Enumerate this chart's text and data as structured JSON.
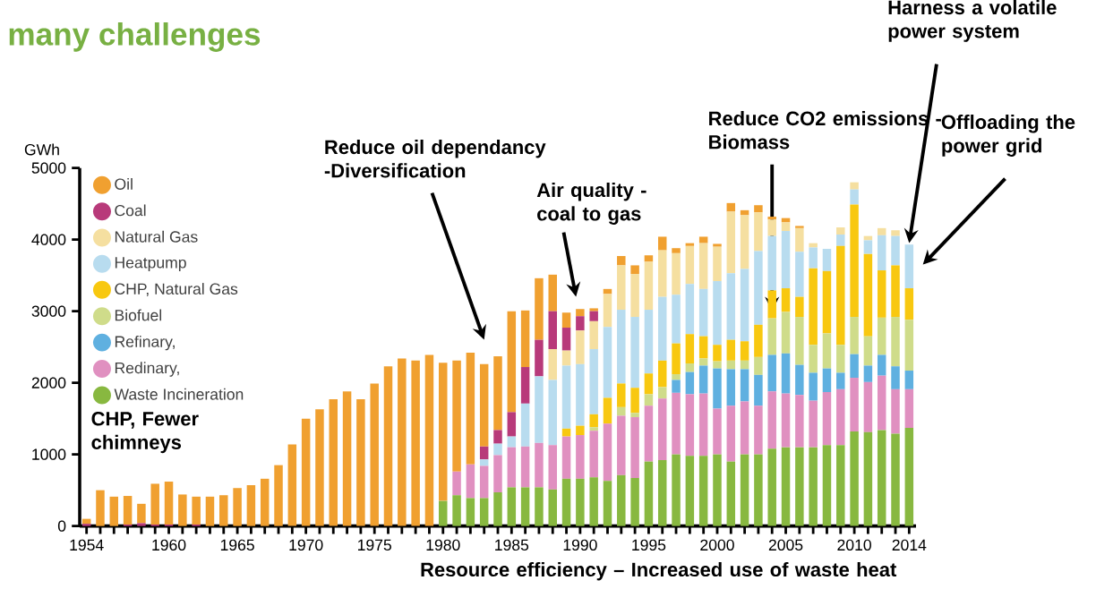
{
  "chart_data": {
    "type": "bar",
    "stacked": true,
    "title": "many challenges",
    "ylabel": "GWh",
    "legend": "top left",
    "x": [
      1954,
      1955,
      1956,
      1957,
      1958,
      1959,
      1960,
      1961,
      1962,
      1963,
      1964,
      1965,
      1966,
      1967,
      1968,
      1969,
      1970,
      1971,
      1972,
      1973,
      1974,
      1975,
      1976,
      1977,
      1978,
      1979,
      1980,
      1981,
      1982,
      1983,
      1984,
      1985,
      1986,
      1987,
      1988,
      1989,
      1990,
      1991,
      1992,
      1993,
      1994,
      1995,
      1996,
      1997,
      1998,
      1999,
      2000,
      2001,
      2002,
      2003,
      2004,
      2005,
      2006,
      2007,
      2008,
      2009,
      2010,
      2011,
      2012,
      2013,
      2014
    ],
    "xlim": [
      1953.5,
      2014.5
    ],
    "xticks": [
      1954,
      {
        "value": 1955,
        "label": null
      },
      {
        "value": 1956,
        "label": null
      },
      {
        "value": 1957,
        "label": null
      },
      {
        "value": 1958,
        "label": null
      },
      {
        "value": 1959,
        "label": null
      },
      1960,
      {
        "value": 1961,
        "label": null
      },
      {
        "value": 1962,
        "label": null
      },
      {
        "value": 1963,
        "label": null
      },
      {
        "value": 1964,
        "label": null
      },
      1965,
      {
        "value": 1966,
        "label": null
      },
      {
        "value": 1967,
        "label": null
      },
      {
        "value": 1968,
        "label": null
      },
      {
        "value": 1969,
        "label": null
      },
      1970,
      {
        "value": 1971,
        "label": null
      },
      {
        "value": 1972,
        "label": null
      },
      {
        "value": 1973,
        "label": null
      },
      {
        "value": 1974,
        "label": null
      },
      1975,
      {
        "value": 1976,
        "label": null
      },
      {
        "value": 1977,
        "label": null
      },
      {
        "value": 1978,
        "label": null
      },
      {
        "value": 1979,
        "label": null
      },
      1980,
      {
        "value": 1981,
        "label": null
      },
      {
        "value": 1982,
        "label": null
      },
      {
        "value": 1983,
        "label": null
      },
      {
        "value": 1984,
        "label": null
      },
      1985,
      {
        "value": 1986,
        "label": null
      },
      {
        "value": 1987,
        "label": null
      },
      {
        "value": 1988,
        "label": null
      },
      {
        "value": 1989,
        "label": null
      },
      1990,
      {
        "value": 1991,
        "label": null
      },
      {
        "value": 1992,
        "label": null
      },
      {
        "value": 1993,
        "label": null
      },
      {
        "value": 1994,
        "label": null
      },
      1995,
      {
        "value": 1996,
        "label": null
      },
      {
        "value": 1997,
        "label": null
      },
      {
        "value": 1998,
        "label": null
      },
      {
        "value": 1999,
        "label": null
      },
      2000,
      {
        "value": 2001,
        "label": null
      },
      {
        "value": 2002,
        "label": null
      },
      {
        "value": 2003,
        "label": null
      },
      {
        "value": 2004,
        "label": null
      },
      2005,
      {
        "value": 2006,
        "label": null
      },
      {
        "value": 2007,
        "label": null
      },
      {
        "value": 2008,
        "label": null
      },
      {
        "value": 2009,
        "label": null
      },
      2010,
      {
        "value": 2011,
        "label": null
      },
      {
        "value": 2012,
        "label": null
      },
      {
        "value": 2013,
        "label": null
      },
      2014
    ],
    "ylim": [
      0,
      5000
    ],
    "yticks": [
      0,
      1000,
      2000,
      3000,
      4000,
      5000
    ],
    "series": [
      {
        "name": "Waste Incineration",
        "color": "#88b840",
        "values": [
          0,
          0,
          0,
          0,
          0,
          0,
          0,
          0,
          0,
          0,
          0,
          0,
          0,
          0,
          0,
          0,
          0,
          0,
          0,
          0,
          0,
          0,
          0,
          0,
          0,
          0,
          350,
          430,
          390,
          390,
          470,
          540,
          540,
          540,
          510,
          660,
          660,
          680,
          630,
          710,
          670,
          900,
          920,
          1000,
          980,
          980,
          1000,
          900,
          1000,
          1000,
          1080,
          1100,
          1100,
          1100,
          1130,
          1130,
          1320,
          1310,
          1340,
          1290,
          1370
        ]
      },
      {
        "name": "Redinary,",
        "color": "#e090c0",
        "values": [
          0,
          0,
          0,
          0,
          0,
          0,
          0,
          0,
          0,
          0,
          0,
          0,
          0,
          0,
          0,
          0,
          0,
          0,
          0,
          0,
          0,
          0,
          0,
          0,
          0,
          0,
          0,
          330,
          470,
          450,
          520,
          560,
          570,
          620,
          620,
          590,
          610,
          650,
          800,
          830,
          850,
          780,
          860,
          860,
          860,
          870,
          640,
          780,
          740,
          680,
          800,
          750,
          730,
          650,
          740,
          780,
          750,
          700,
          760,
          620,
          540
        ]
      },
      {
        "name": "Refinary,",
        "color": "#5fb0e0",
        "values": [
          0,
          0,
          0,
          0,
          0,
          0,
          0,
          0,
          0,
          0,
          0,
          0,
          0,
          0,
          0,
          0,
          0,
          0,
          0,
          0,
          0,
          0,
          0,
          0,
          0,
          0,
          0,
          0,
          0,
          0,
          0,
          0,
          0,
          0,
          0,
          0,
          0,
          0,
          0,
          0,
          0,
          0,
          0,
          180,
          310,
          390,
          560,
          510,
          450,
          430,
          510,
          560,
          420,
          390,
          330,
          230,
          330,
          230,
          290,
          320,
          260
        ]
      },
      {
        "name": "Biofuel",
        "color": "#cfdc8a",
        "values": [
          0,
          0,
          0,
          0,
          0,
          0,
          0,
          0,
          0,
          0,
          0,
          0,
          0,
          0,
          0,
          0,
          0,
          0,
          0,
          0,
          0,
          0,
          0,
          0,
          0,
          0,
          0,
          0,
          0,
          0,
          0,
          0,
          0,
          0,
          0,
          0,
          0,
          50,
          0,
          120,
          60,
          160,
          160,
          80,
          120,
          100,
          100,
          120,
          120,
          250,
          510,
          580,
          670,
          390,
          490,
          390,
          520,
          410,
          520,
          690,
          710
        ]
      },
      {
        "name": "CHP, Natural Gas",
        "color": "#f8c810",
        "values": [
          0,
          0,
          0,
          0,
          0,
          0,
          0,
          0,
          0,
          0,
          0,
          0,
          0,
          0,
          0,
          0,
          0,
          0,
          0,
          0,
          0,
          0,
          0,
          0,
          0,
          0,
          0,
          0,
          0,
          0,
          0,
          0,
          0,
          0,
          0,
          110,
          130,
          180,
          360,
          330,
          350,
          290,
          370,
          430,
          410,
          310,
          230,
          290,
          270,
          450,
          390,
          330,
          280,
          1070,
          870,
          1380,
          1570,
          1150,
          660,
          720,
          440
        ]
      },
      {
        "name": "Heatpump",
        "color": "#b8dcef",
        "values": [
          0,
          0,
          0,
          0,
          0,
          0,
          0,
          0,
          0,
          0,
          0,
          0,
          0,
          0,
          0,
          0,
          0,
          0,
          0,
          0,
          0,
          0,
          0,
          0,
          0,
          0,
          0,
          0,
          0,
          90,
          160,
          150,
          600,
          930,
          910,
          880,
          860,
          910,
          990,
          1030,
          990,
          890,
          890,
          680,
          700,
          660,
          890,
          930,
          1010,
          1030,
          760,
          800,
          630,
          290,
          310,
          160,
          210,
          190,
          490,
          410,
          610
        ]
      },
      {
        "name": "Natural Gas",
        "color": "#f5dfa0",
        "values": [
          0,
          0,
          0,
          0,
          0,
          0,
          0,
          0,
          0,
          0,
          0,
          0,
          0,
          0,
          0,
          0,
          0,
          0,
          0,
          0,
          0,
          0,
          0,
          0,
          0,
          0,
          0,
          0,
          0,
          0,
          0,
          0,
          0,
          0,
          430,
          210,
          470,
          390,
          460,
          620,
          600,
          670,
          650,
          580,
          530,
          640,
          480,
          860,
          750,
          540,
          230,
          120,
          330,
          60,
          0,
          100,
          100,
          60,
          100,
          80,
          0
        ]
      },
      {
        "name": "Coal",
        "color": "#b83a7a",
        "values": [
          30,
          0,
          0,
          20,
          40,
          20,
          20,
          0,
          20,
          0,
          0,
          0,
          0,
          0,
          0,
          0,
          0,
          0,
          0,
          0,
          0,
          0,
          0,
          0,
          0,
          0,
          0,
          0,
          0,
          180,
          190,
          340,
          510,
          510,
          530,
          320,
          200,
          140,
          0,
          0,
          0,
          0,
          0,
          0,
          0,
          0,
          0,
          0,
          0,
          0,
          0,
          0,
          0,
          0,
          0,
          0,
          0,
          0,
          0,
          0,
          0
        ]
      },
      {
        "name": "Oil",
        "color": "#f0a030",
        "values": [
          70,
          500,
          410,
          400,
          270,
          570,
          600,
          440,
          390,
          410,
          430,
          530,
          570,
          660,
          850,
          1140,
          1500,
          1630,
          1770,
          1880,
          1770,
          1990,
          2230,
          2340,
          2310,
          2390,
          1930,
          1550,
          1560,
          1150,
          1030,
          1410,
          790,
          860,
          510,
          210,
          100,
          40,
          70,
          130,
          120,
          90,
          190,
          70,
          40,
          90,
          40,
          120,
          70,
          100,
          40,
          60,
          30,
          0,
          0,
          0,
          0,
          0,
          0,
          0,
          0
        ]
      }
    ],
    "annotations": [
      "Reduce oil dependancy -Diversification",
      "Air quality - coal to gas",
      "Reduce CO2 emissions - Biomass",
      "Harness a volatile power system",
      "Offloading the power grid",
      "CHP, Fewer chimneys",
      "Resource efficiency – Increased use of waste heat"
    ]
  }
}
